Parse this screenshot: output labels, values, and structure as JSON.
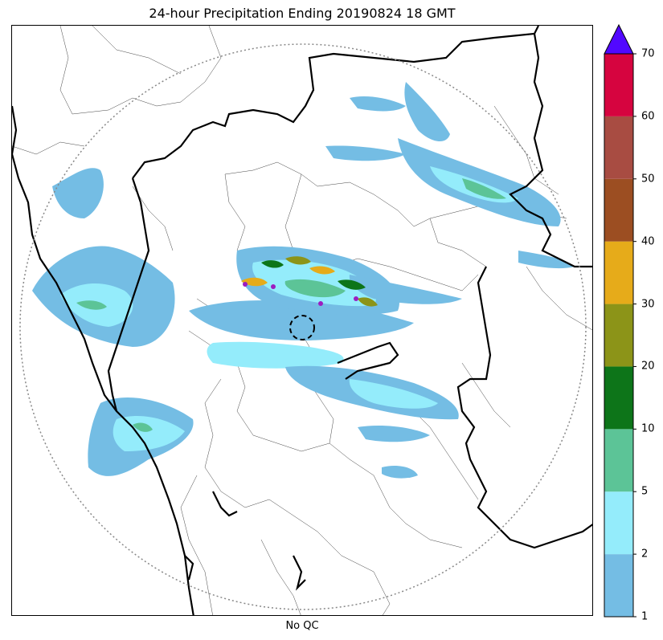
{
  "title": "24-hour Precipitation Ending 20190824 18 GMT",
  "xlabel": "No QC",
  "colorbar": {
    "ticks": [
      "1",
      "2",
      "5",
      "10",
      "20",
      "30",
      "40",
      "50",
      "60",
      "70"
    ],
    "bins": [
      {
        "from": "1",
        "to": "2",
        "color": "#74bde4"
      },
      {
        "from": "2",
        "to": "5",
        "color": "#94ecfb"
      },
      {
        "from": "5",
        "to": "10",
        "color": "#5cc497"
      },
      {
        "from": "10",
        "to": "20",
        "color": "#0d7519"
      },
      {
        "from": "20",
        "to": "30",
        "color": "#8c9418"
      },
      {
        "from": "30",
        "to": "40",
        "color": "#e6ab1a"
      },
      {
        "from": "40",
        "to": "50",
        "color": "#9c4e22"
      },
      {
        "from": "50",
        "to": "60",
        "color": "#a84c42"
      },
      {
        "from": "60",
        "to": "70",
        "color": "#d6043f"
      }
    ],
    "extend_color": "#5208ff"
  },
  "map": {
    "range_ring": "dotted",
    "radar_marker": "dashed-circle",
    "precip_colors": {
      "light": "#74bde4",
      "moderate": "#94ecfb",
      "medium": "#5cc497",
      "heavy": "#0d7519",
      "very_heavy": "#8c9418",
      "extreme": "#e6ab1a",
      "max": "#9c1dc0"
    }
  }
}
